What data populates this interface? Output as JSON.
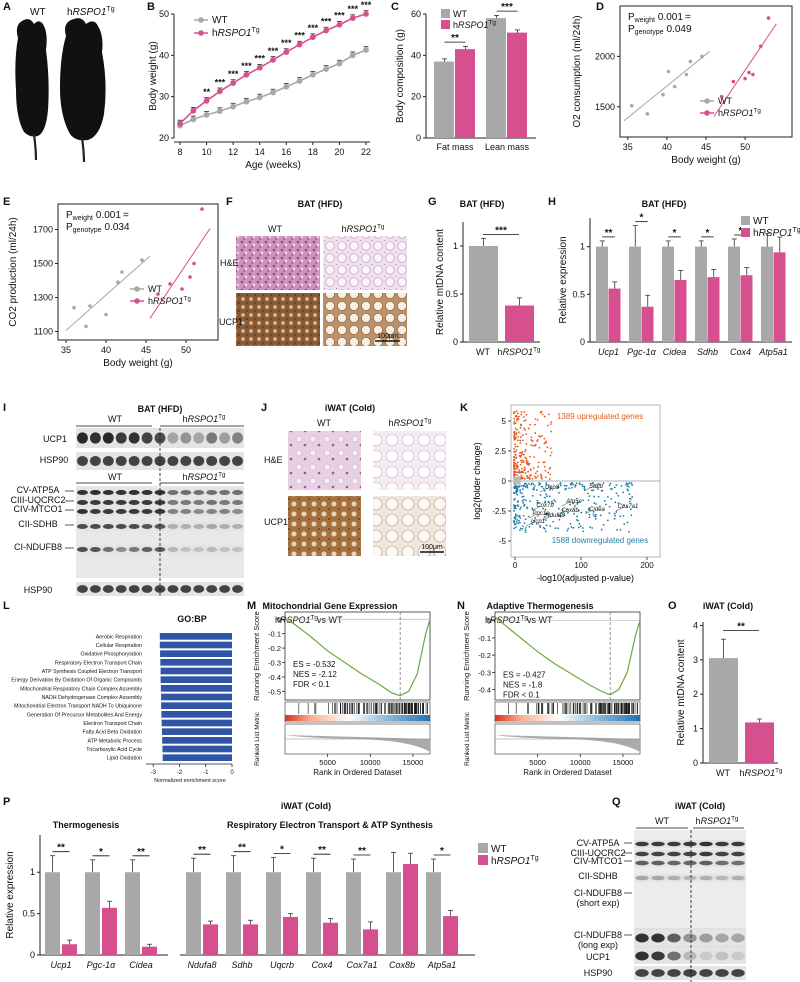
{
  "colors": {
    "wt": "#a8a8a8",
    "tg": "#d6508f",
    "axis": "#222222",
    "blue": "#2f55a4",
    "green": "#6aaa3e",
    "orange": "#e45a1e",
    "teal": "#1f7fa8"
  },
  "common": {
    "wt": "WT",
    "tg_prefix": "h",
    "tg_gene": "RSPO1",
    "tg_sup": "Tg"
  },
  "panelA": {
    "letter": "A",
    "wt_label": "WT"
  },
  "panelB": {
    "letter": "B",
    "chart_data": {
      "type": "line",
      "xlabel": "Age (weeks)",
      "ylabel": "Body weight (g)",
      "x": [
        8,
        9,
        10,
        11,
        12,
        13,
        14,
        15,
        16,
        17,
        18,
        19,
        20,
        21,
        22
      ],
      "xticks": [
        8,
        10,
        12,
        14,
        16,
        18,
        20,
        22
      ],
      "ylim": [
        20,
        50
      ],
      "yticks": [
        20,
        30,
        40,
        50
      ],
      "series": [
        {
          "name": "WT",
          "values": [
            23.0,
            24.5,
            25.6,
            26.5,
            27.6,
            28.8,
            29.8,
            31.0,
            32.4,
            33.8,
            35.3,
            36.7,
            38.0,
            40.0,
            41.3
          ]
        },
        {
          "name": "hRSPO1Tg",
          "values": [
            23.5,
            26.6,
            29.0,
            31.3,
            33.3,
            35.3,
            37.0,
            38.9,
            40.8,
            42.6,
            44.4,
            46.0,
            47.4,
            49.0,
            50.0
          ]
        }
      ],
      "sig": [
        "",
        "",
        "**",
        "***",
        "***",
        "***",
        "***",
        "***",
        "***",
        "***",
        "***",
        "***",
        "***",
        "***",
        "***"
      ]
    }
  },
  "panelC": {
    "letter": "C",
    "chart_data": {
      "type": "bar",
      "ylabel": "Body composition (g)",
      "categories": [
        "Fat mass",
        "Lean mass"
      ],
      "series": [
        {
          "name": "WT",
          "values": [
            37,
            58
          ]
        },
        {
          "name": "hRSPO1Tg",
          "values": [
            43,
            51
          ]
        }
      ],
      "ylim": [
        0,
        60
      ],
      "yticks": [
        0,
        20,
        40,
        60
      ],
      "sig": [
        "**",
        "***"
      ]
    }
  },
  "panelD": {
    "letter": "D",
    "chart_data": {
      "type": "scatter",
      "xlabel": "Body weight (g)",
      "ylabel": "O2 consumption (ml/24h)",
      "xlim": [
        34,
        56
      ],
      "xticks": [
        35,
        40,
        45,
        50
      ],
      "ylim": [
        1200,
        2500
      ],
      "yticks": [
        1500,
        2000
      ],
      "p_weight": "0.001",
      "p_genotype": "0.049",
      "series": [
        {
          "name": "WT",
          "points": [
            [
              35.5,
              1510
            ],
            [
              37.5,
              1430
            ],
            [
              39.5,
              1620
            ],
            [
              40.2,
              1850
            ],
            [
              41.0,
              1700
            ],
            [
              42.5,
              1820
            ],
            [
              43.0,
              1950
            ],
            [
              44.5,
              2000
            ]
          ]
        },
        {
          "name": "hRSPO1Tg",
          "points": [
            [
              47.0,
              1600
            ],
            [
              48.5,
              1750
            ],
            [
              50.0,
              1780
            ],
            [
              50.5,
              1840
            ],
            [
              51.0,
              1820
            ],
            [
              52.0,
              2100
            ],
            [
              53.0,
              2380
            ]
          ]
        }
      ]
    }
  },
  "panelE": {
    "letter": "E",
    "chart_data": {
      "type": "scatter",
      "xlabel": "Body weight (g)",
      "ylabel": "CO2 production (ml/24h)",
      "xlim": [
        34,
        54
      ],
      "xticks": [
        35,
        40,
        45,
        50
      ],
      "ylim": [
        1050,
        1850
      ],
      "yticks": [
        1100,
        1300,
        1500,
        1700
      ],
      "p_weight": "0.001",
      "p_genotype": "0.034",
      "series": [
        {
          "name": "WT",
          "points": [
            [
              36.0,
              1240
            ],
            [
              37.5,
              1130
            ],
            [
              38.0,
              1250
            ],
            [
              40.0,
              1200
            ],
            [
              41.5,
              1390
            ],
            [
              42.0,
              1450
            ],
            [
              44.5,
              1520
            ]
          ]
        },
        {
          "name": "hRSPO1Tg",
          "points": [
            [
              46.5,
              1320
            ],
            [
              48.0,
              1380
            ],
            [
              49.5,
              1350
            ],
            [
              50.5,
              1420
            ],
            [
              51.0,
              1500
            ],
            [
              52.0,
              1820
            ]
          ]
        }
      ]
    }
  },
  "panelF": {
    "letter": "F",
    "title": "BAT (HFD)",
    "row1": "H&E",
    "row2": "UCP1",
    "scale": "100μm"
  },
  "panelG": {
    "letter": "G",
    "title": "BAT (HFD)",
    "chart_data": {
      "type": "bar",
      "ylabel": "Relative mtDNA content",
      "categories": [
        "WT",
        "hRSPO1Tg"
      ],
      "values": [
        1.0,
        0.38
      ],
      "errors": [
        0.08,
        0.08
      ],
      "ylim": [
        0,
        1.25
      ],
      "yticks": [
        0,
        0.5,
        1.0
      ],
      "sig": "***"
    }
  },
  "panelH": {
    "letter": "H",
    "title": "BAT (HFD)",
    "chart_data": {
      "type": "bar",
      "ylabel": "Relative expression",
      "categories": [
        "Ucp1",
        "Pgc-1α",
        "Cidea",
        "Sdhb",
        "Cox4",
        "Atp5a1"
      ],
      "series": [
        {
          "name": "WT",
          "values": [
            1.0,
            1.0,
            1.0,
            1.0,
            1.0,
            1.0
          ],
          "errors": [
            0.06,
            0.22,
            0.06,
            0.06,
            0.08,
            0.14
          ]
        },
        {
          "name": "hRSPO1Tg",
          "values": [
            0.56,
            0.37,
            0.65,
            0.68,
            0.7,
            0.94
          ],
          "errors": [
            0.07,
            0.12,
            0.1,
            0.08,
            0.08,
            0.16
          ]
        }
      ],
      "ylim": [
        0,
        1.3
      ],
      "yticks": [
        0,
        0.5,
        1.0
      ],
      "sig": [
        "**",
        "*",
        "*",
        "*",
        "*",
        ""
      ]
    }
  },
  "panelI": {
    "letter": "I",
    "title": "BAT (HFD)",
    "labels_top": [
      "UCP1",
      "HSP90"
    ],
    "labels_bottom": [
      "CV-ATP5A",
      "CIII-UQCRC2",
      "CIV-MTCO1",
      "CII-SDHB",
      "CI-NDUFB8",
      "HSP90"
    ]
  },
  "panelJ": {
    "letter": "J",
    "title": "iWAT (Cold)",
    "row1": "H&E",
    "row2": "UCP1",
    "scale": "100μm"
  },
  "panelK": {
    "letter": "K",
    "xlabel": "-log10(adjusted p-value)",
    "ylabel": "log2(folder change)",
    "yticks": [
      -5.0,
      -2.5,
      0.0,
      2.5,
      5.0
    ],
    "xticks": [
      0,
      100,
      200
    ],
    "up_label": "1389 upregulated genes",
    "down_label": "1588 downregulated genes",
    "genes": [
      "Ucp3",
      "Sdhb",
      "Cox7b",
      "Atp5e",
      "Ndufa8",
      "Cox8b",
      "Cidea",
      "Cox7a1",
      "Pgc1a",
      "Ucp1"
    ]
  },
  "panelL": {
    "letter": "L",
    "title": "GO:BP",
    "xlabel": "Normalized enrichment score",
    "xticks": [
      -3,
      -2,
      -1,
      0
    ],
    "chart_data": {
      "type": "bar",
      "categories": [
        "Aerobic Respiration",
        "Cellular Respiration",
        "Oxidative Phosphorylation",
        "Respiratory Electron Transport Chain",
        "ATP Synthesis Coupled Electron Transport",
        "Energy Derivation By Oxidation Of Organic Compounds",
        "Mitochondrial Respiratory Chain Complex Assembly",
        "NADH Dehydrogenase Complex Assembly",
        "Mitochondrial Electron Transport NADH To Ubiquinone",
        "Generation Of Precursor Metabolites And Energy",
        "Electron Transport Chain",
        "Fatty Acid Beta Oxidation",
        "ATP Metabolic Process",
        "Tricarboxylic Acid Cycle",
        "Lipid Oxidation"
      ],
      "values": [
        -2.75,
        -2.75,
        -2.74,
        -2.73,
        -2.72,
        -2.72,
        -2.71,
        -2.7,
        -2.7,
        -2.69,
        -2.68,
        -2.67,
        -2.66,
        -2.65,
        -2.64
      ],
      "xlim": [
        -3.2,
        0
      ]
    }
  },
  "panelM": {
    "letter": "M",
    "title": "Mitochondrial Gene Expression",
    "subtitle": "vs WT",
    "ylabel": "Running Enrichment Score",
    "ylabel2": "Ranked List Metric",
    "xlabel": "Rank in Ordered Dataset",
    "es": "ES = -0.532",
    "nes": "NES = -2.12",
    "fdr": "FDR < 0.1",
    "yticks": [
      0.0,
      -0.1,
      -0.2,
      -0.3,
      -0.4,
      -0.5
    ],
    "xticks": [
      5000,
      10000,
      15000
    ],
    "chart_data": {
      "type": "line",
      "x": [
        0,
        1000,
        3000,
        5000,
        7000,
        9000,
        11000,
        12500,
        13500,
        14500,
        15500,
        16500,
        17000
      ],
      "y": [
        0,
        -0.03,
        -0.12,
        -0.22,
        -0.3,
        -0.38,
        -0.45,
        -0.51,
        -0.53,
        -0.5,
        -0.38,
        -0.1,
        0.0
      ]
    }
  },
  "panelN": {
    "letter": "N",
    "title": "Adaptive Thermogenesis",
    "subtitle": "vs WT",
    "ylabel": "Running Enrichment Score",
    "ylabel2": "Ranked List Metric",
    "xlabel": "Rank in Ordered Dataset",
    "es": "ES = -0.427",
    "nes": "NES = -1.8",
    "fdr": "FDR < 0.1",
    "yticks": [
      0.0,
      -0.1,
      -0.2,
      -0.3,
      -0.4
    ],
    "xticks": [
      5000,
      10000,
      15000
    ],
    "chart_data": {
      "type": "line",
      "x": [
        0,
        1000,
        3000,
        5000,
        7000,
        9000,
        11000,
        12500,
        13500,
        14500,
        15500,
        16500,
        17000
      ],
      "y": [
        0.02,
        -0.02,
        -0.1,
        -0.18,
        -0.25,
        -0.31,
        -0.37,
        -0.41,
        -0.43,
        -0.4,
        -0.3,
        -0.08,
        0.0
      ]
    }
  },
  "panelO": {
    "letter": "O",
    "title": "iWAT (Cold)",
    "chart_data": {
      "type": "bar",
      "ylabel": "Relative mtDNA content",
      "categories": [
        "WT",
        "hRSPO1Tg"
      ],
      "values": [
        3.05,
        1.18
      ],
      "errors": [
        0.55,
        0.1
      ],
      "ylim": [
        0,
        4.1
      ],
      "yticks": [
        0,
        1,
        2,
        3,
        4
      ],
      "sig": "**"
    }
  },
  "panelP": {
    "letter": "P",
    "title": "iWAT (Cold)",
    "group1": "Thermogenesis",
    "group2": "Respiratory Electron Transport & ATP Synthesis",
    "chart_data": {
      "type": "bar",
      "ylabel": "Relative expression",
      "categories": [
        "Ucp1",
        "Pgc-1α",
        "Cidea",
        "Ndufa8",
        "Sdhb",
        "Uqcrb",
        "Cox4",
        "Cox7a1",
        "Cox8b",
        "Atp5a1"
      ],
      "series": [
        {
          "name": "WT",
          "values": [
            1.0,
            1.0,
            1.0,
            1.0,
            1.0,
            1.0,
            1.0,
            1.0,
            1.0,
            1.0
          ],
          "errors": [
            0.2,
            0.15,
            0.15,
            0.17,
            0.2,
            0.18,
            0.17,
            0.16,
            0.24,
            0.16
          ]
        },
        {
          "name": "hRSPO1Tg",
          "values": [
            0.13,
            0.57,
            0.1,
            0.37,
            0.37,
            0.46,
            0.39,
            0.31,
            1.1,
            0.47
          ],
          "errors": [
            0.05,
            0.08,
            0.03,
            0.04,
            0.05,
            0.04,
            0.05,
            0.09,
            0.13,
            0.07
          ]
        }
      ],
      "ylim": [
        0,
        1.45
      ],
      "yticks": [
        0.0,
        0.5,
        1.0
      ],
      "sig": [
        "**",
        "*",
        "**",
        "**",
        "**",
        "*",
        "**",
        "**",
        "",
        "*"
      ]
    }
  },
  "panelQ": {
    "letter": "Q",
    "title": "iWAT (Cold)",
    "labels": [
      "CV-ATP5A",
      "CIII-UQCRC2",
      "CIV-MTCO1",
      "CII-SDHB",
      "CI-NDUFB8",
      "(short exp)",
      "CI-NDUFB8",
      "(long exp)",
      "UCP1",
      "HSP90"
    ]
  }
}
